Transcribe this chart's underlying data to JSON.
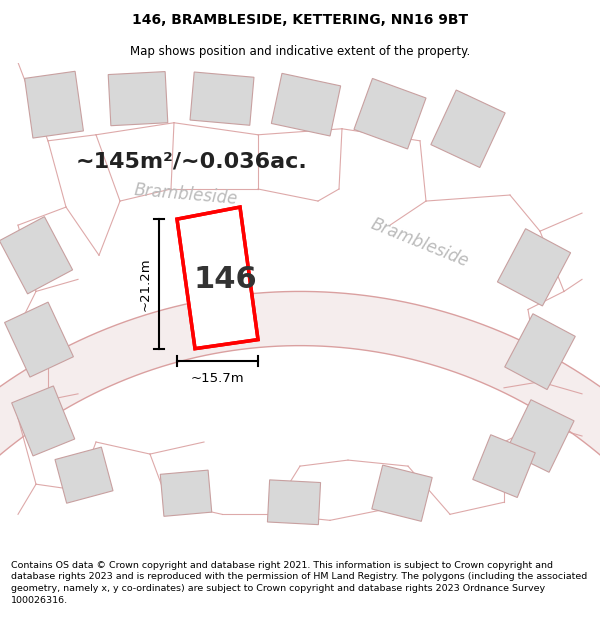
{
  "title": "146, BRAMBLESIDE, KETTERING, NN16 9BT",
  "subtitle": "Map shows position and indicative extent of the property.",
  "footer": "Contains OS data © Crown copyright and database right 2021. This information is subject to Crown copyright and database rights 2023 and is reproduced with the permission of HM Land Registry. The polygons (including the associated geometry, namely x, y co-ordinates) are subject to Crown copyright and database rights 2023 Ordnance Survey 100026316.",
  "road_label1": "Brambleside",
  "road_label2": "Brambleside",
  "property_label": "146",
  "area_label": "~145m²/~0.036ac.",
  "dim_width": "~15.7m",
  "dim_height": "~21.2m",
  "title_fontsize": 10,
  "subtitle_fontsize": 8.5,
  "footer_fontsize": 6.8,
  "map_bg": "#ffffff",
  "road_fill": "#f5eded",
  "road_edge": "#daa0a0",
  "plot_fill": "#d8d8d8",
  "plot_edge": "#c8a0a0",
  "prop_fill": "#ffffff",
  "prop_edge": "#ff0000",
  "building_fill": "#d0d0d0",
  "building_edge": "#bbbbbb",
  "dim_color": "#000000",
  "label_color": "#333333",
  "road_text_color": "#bbbbbb",
  "area_text_color": "#222222"
}
